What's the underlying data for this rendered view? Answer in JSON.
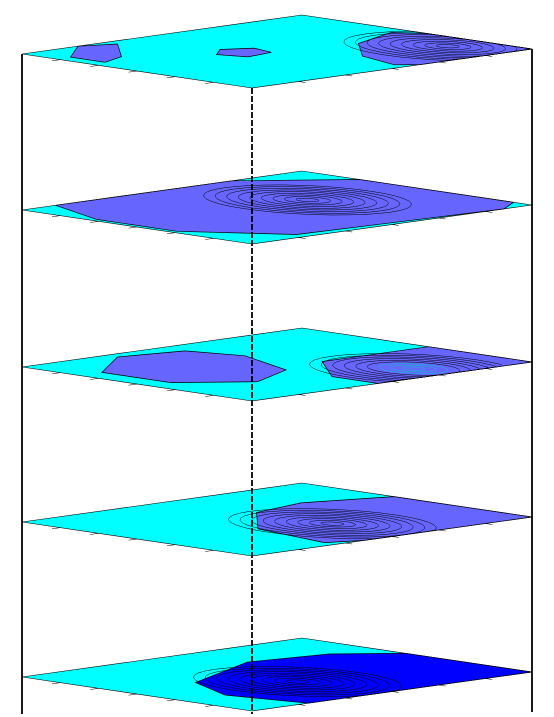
{
  "figure": {
    "type": "stacked 3D contour layers",
    "colors": {
      "background": "#ffffff",
      "base_fill": "#00ffff",
      "region_fill": "#6666ff",
      "bottom_region_fill": "#0000ff",
      "contour_line": "#000000",
      "frame_line": "#000000",
      "highlight_contour": "#00c8c8"
    },
    "layers": [
      {
        "id": "layer-1",
        "index": 1,
        "region_color": "#6666ff"
      },
      {
        "id": "layer-2",
        "index": 2,
        "region_color": "#6666ff"
      },
      {
        "id": "layer-3",
        "index": 3,
        "region_color": "#6666ff"
      },
      {
        "id": "layer-4",
        "index": 4,
        "region_color": "#6666ff"
      },
      {
        "id": "layer-5",
        "index": 5,
        "region_color": "#0000ff"
      }
    ]
  }
}
